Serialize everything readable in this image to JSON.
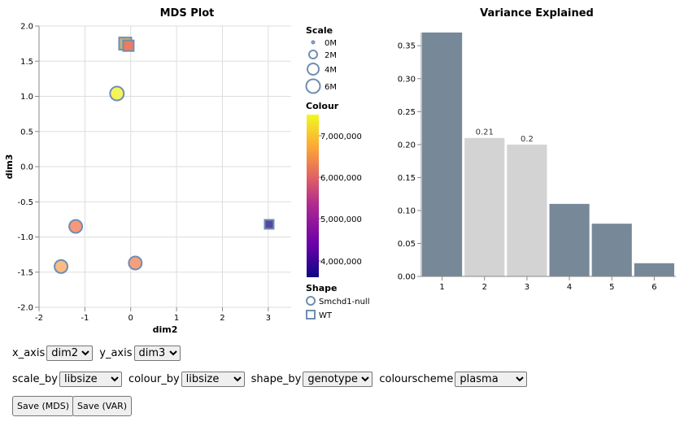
{
  "chart_data": [
    {
      "type": "scatter",
      "title": "MDS Plot",
      "xlabel": "dim2",
      "ylabel": "dim3",
      "xlim": [
        -2,
        3.5
      ],
      "ylim": [
        -2.0,
        2.0
      ],
      "xticks": [
        "-2",
        "-1",
        "0",
        "1",
        "2",
        "3"
      ],
      "yticks": [
        "2.0",
        "1.5",
        "1.0",
        "0.5",
        "0.0",
        "-0.5",
        "-1.0",
        "-1.5",
        "-2.0"
      ],
      "grid": true,
      "points": [
        {
          "x": -0.12,
          "y": 1.75,
          "libsize": 6500000,
          "genotype": "WT",
          "color": "#c2b26a",
          "size": 15
        },
        {
          "x": -0.05,
          "y": 1.72,
          "libsize": 6200000,
          "genotype": "WT",
          "color": "#f0795e",
          "size": 13
        },
        {
          "x": -0.3,
          "y": 1.04,
          "libsize": 7400000,
          "genotype": "Smchd1-null",
          "color": "#f3f352",
          "size": 8.5
        },
        {
          "x": -1.2,
          "y": -0.85,
          "libsize": 6300000,
          "genotype": "Smchd1-null",
          "color": "#f59273",
          "size": 8
        },
        {
          "x": -1.52,
          "y": -1.42,
          "libsize": 6800000,
          "genotype": "Smchd1-null",
          "color": "#fbb77b",
          "size": 8
        },
        {
          "x": 0.1,
          "y": -1.37,
          "libsize": 6400000,
          "genotype": "Smchd1-null",
          "color": "#f69a74",
          "size": 8
        },
        {
          "x": 3.02,
          "y": -0.82,
          "libsize": 4100000,
          "genotype": "WT",
          "color": "#4a3f98",
          "size": 11
        }
      ],
      "legend": {
        "scale": {
          "title": "Scale",
          "items": [
            "0M",
            "2M",
            "4M",
            "6M"
          ]
        },
        "colour": {
          "title": "Colour",
          "ticks": [
            "7,000,000",
            "6,000,000",
            "5,000,000",
            "4,000,000"
          ]
        },
        "shape": {
          "title": "Shape",
          "items": [
            "Smchd1-null",
            "WT"
          ]
        }
      }
    },
    {
      "type": "bar",
      "title": "Variance Explained",
      "categories": [
        "1",
        "2",
        "3",
        "4",
        "5",
        "6"
      ],
      "values": [
        0.37,
        0.21,
        0.2,
        0.11,
        0.08,
        0.02
      ],
      "highlighted": [
        false,
        true,
        true,
        false,
        false,
        false
      ],
      "data_labels": [
        "",
        "0.21",
        "0.2",
        "",
        "",
        ""
      ],
      "ylim": [
        0,
        0.37
      ],
      "yticks": [
        "0.35",
        "0.30",
        "0.25",
        "0.20",
        "0.15",
        "0.10",
        "0.05",
        "0.00"
      ],
      "colors": {
        "default": "#778899",
        "highlight": "#d3d3d3"
      }
    }
  ],
  "controls": {
    "x_axis": {
      "label": "x_axis",
      "value": "dim2"
    },
    "y_axis": {
      "label": "y_axis",
      "value": "dim3"
    },
    "scale_by": {
      "label": "scale_by",
      "value": "libsize"
    },
    "colour_by": {
      "label": "colour_by",
      "value": "libsize"
    },
    "shape_by": {
      "label": "shape_by",
      "value": "genotype"
    },
    "colourscheme": {
      "label": "colourscheme",
      "value": "plasma"
    }
  },
  "buttons": {
    "save_mds": "Save (MDS)",
    "save_var": "Save (VAR)"
  }
}
